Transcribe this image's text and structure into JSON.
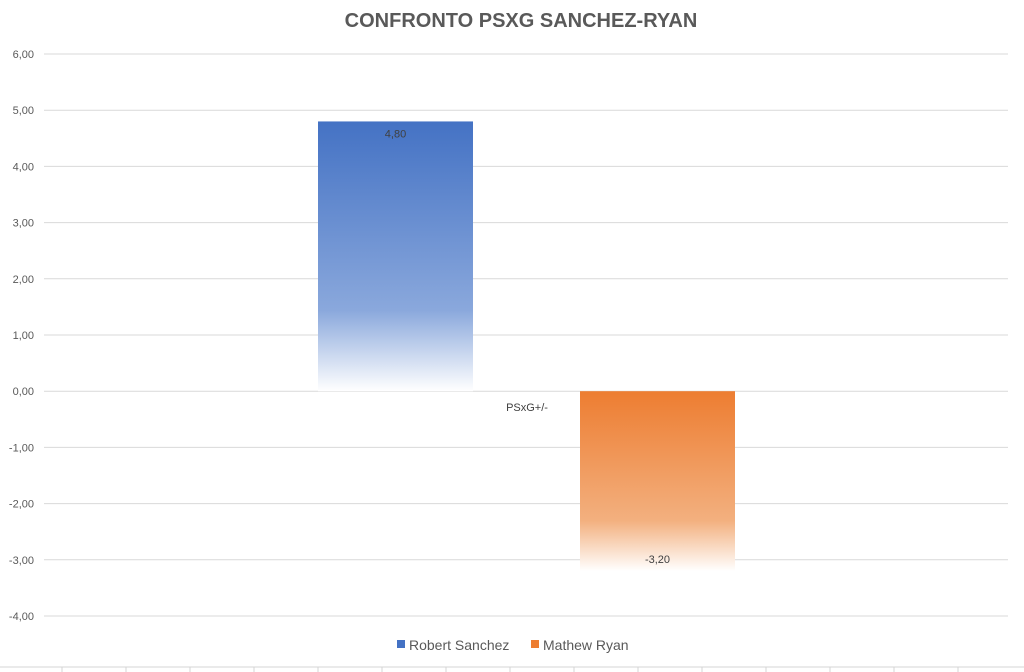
{
  "chart_data": {
    "type": "bar",
    "title": "CONFRONTO PSXG SANCHEZ-RYAN",
    "categories": [
      "PSxG+/-"
    ],
    "series": [
      {
        "name": "Robert Sanchez",
        "values": [
          4.8
        ],
        "value_label": "4,80",
        "color": "#4472c4"
      },
      {
        "name": "Mathew Ryan",
        "values": [
          -3.2
        ],
        "value_label": "-3,20",
        "color": "#ed7d31"
      }
    ],
    "ylim": [
      -4,
      6
    ],
    "y_ticks": [
      "6,00",
      "5,00",
      "4,00",
      "3,00",
      "2,00",
      "1,00",
      "0,00",
      "-1,00",
      "-2,00",
      "-3,00",
      "-4,00"
    ],
    "grid": true,
    "legend": "bottom",
    "xlabel": "",
    "ylabel": ""
  }
}
